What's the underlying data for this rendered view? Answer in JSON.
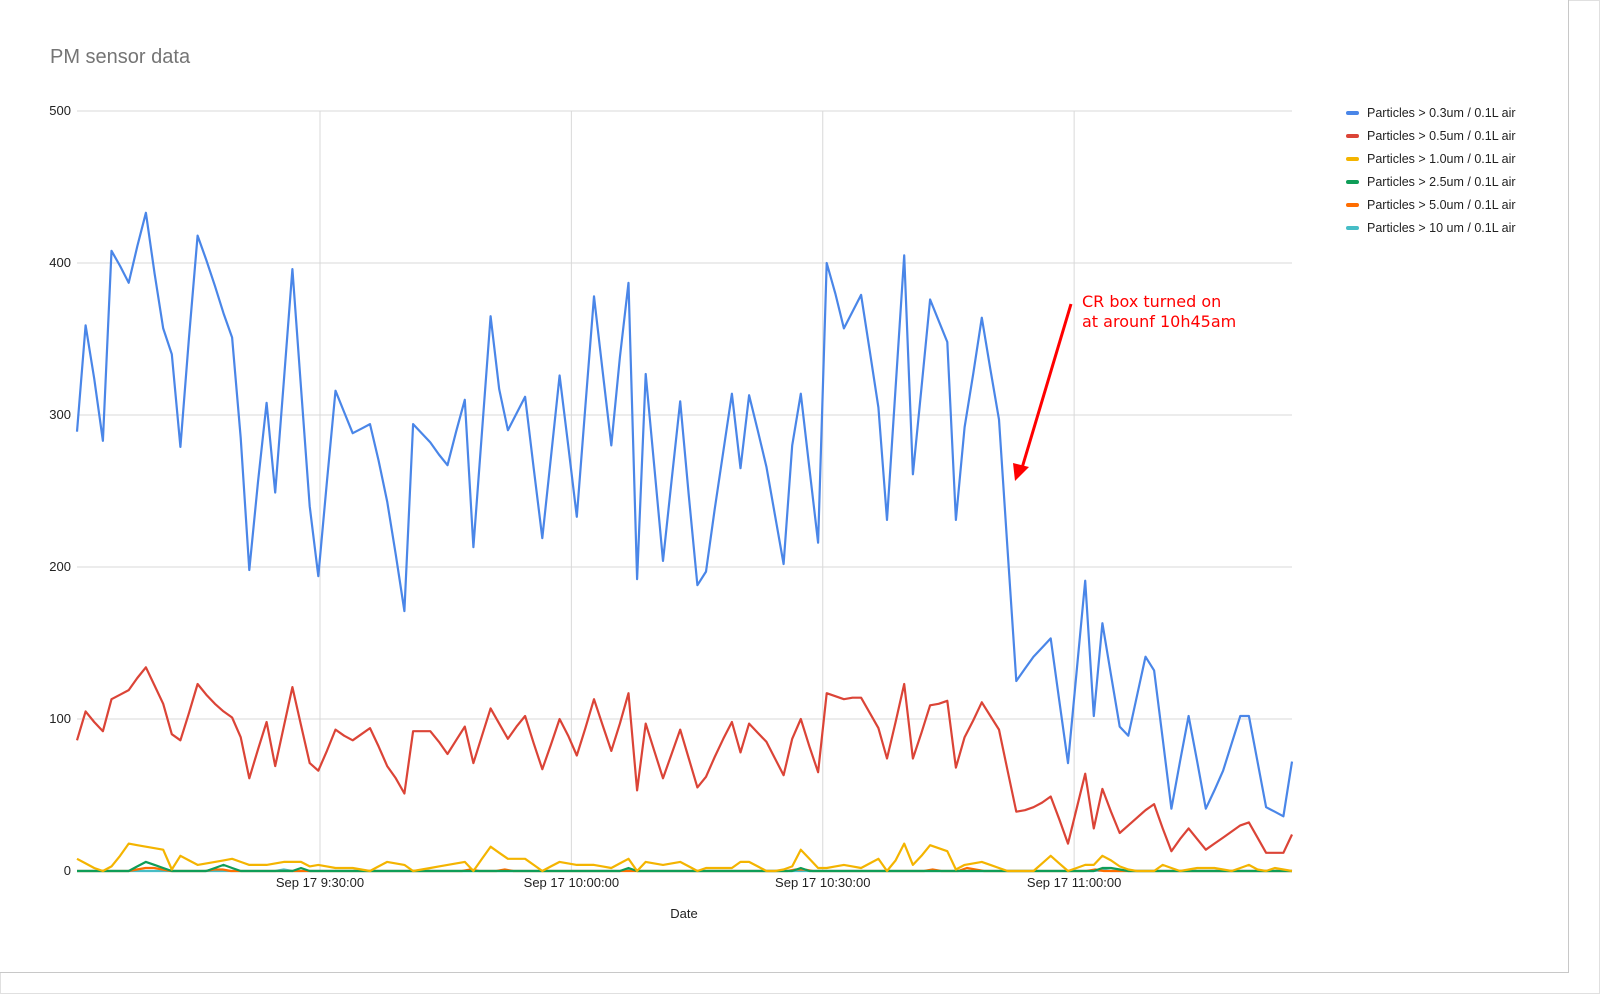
{
  "chart_data": {
    "type": "line",
    "title": "PM sensor data",
    "xlabel": "Date",
    "ylabel": "",
    "ylim": [
      0,
      500
    ],
    "yticks": [
      0,
      100,
      200,
      300,
      400,
      500
    ],
    "x_start": "Sep 17 9:01:00",
    "x_interval_seconds": 59,
    "x_end": "Sep 17 11:26:00",
    "xticks": [
      {
        "label": "Sep 17 9:30:00",
        "t": "09:30:00"
      },
      {
        "label": "Sep 17 10:00:00",
        "t": "10:00:00"
      },
      {
        "label": "Sep 17 10:30:00",
        "t": "10:30:00"
      },
      {
        "label": "Sep 17 11:00:00",
        "t": "11:00:00"
      }
    ],
    "grid": true,
    "legend_position": "right",
    "series": [
      {
        "name": "Particles > 0.3um / 0.1L air",
        "color": "#4a86e8",
        "values": [
          289,
          359,
          324,
          283,
          408,
          398,
          387,
          411,
          433,
          393,
          357,
          340,
          279,
          351,
          418,
          402,
          385,
          367,
          351,
          285,
          198,
          256,
          308,
          249,
          322,
          396,
          318,
          240,
          194,
          256,
          316,
          302,
          288,
          291,
          294,
          270,
          243,
          208,
          171,
          294,
          288,
          282,
          274,
          267,
          289,
          310,
          213,
          289,
          365,
          317,
          290,
          301,
          312,
          265,
          219,
          272,
          326,
          280,
          233,
          306,
          378,
          329,
          280,
          338,
          387,
          192,
          327,
          266,
          204,
          257,
          309,
          247,
          188,
          197,
          238,
          276,
          314,
          265,
          313,
          290,
          266,
          234,
          202,
          280,
          314,
          265,
          216,
          400,
          380,
          357,
          368,
          379,
          342,
          305,
          231,
          318,
          405,
          261,
          318,
          376,
          362,
          348,
          231,
          292,
          327,
          364,
          330,
          297,
          211,
          125,
          133,
          141,
          147,
          153,
          112,
          71,
          131,
          191,
          102,
          163,
          129,
          95,
          89,
          115,
          141,
          132,
          87,
          41,
          72,
          102,
          72,
          41,
          53,
          66,
          84,
          102,
          102,
          72,
          42,
          39,
          36,
          72
        ]
      },
      {
        "name": "Particles > 0.5um / 0.1L air",
        "color": "#db4437",
        "values": [
          86,
          105,
          98,
          92,
          113,
          116,
          119,
          127,
          134,
          122,
          110,
          90,
          86,
          104,
          123,
          116,
          110,
          105,
          101,
          88,
          61,
          80,
          98,
          69,
          95,
          121,
          96,
          71,
          66,
          79,
          93,
          89,
          86,
          90,
          94,
          82,
          69,
          61,
          51,
          92,
          92,
          92,
          85,
          77,
          86,
          95,
          71,
          89,
          107,
          97,
          87,
          95,
          102,
          84,
          67,
          83,
          100,
          89,
          76,
          94,
          113,
          96,
          79,
          97,
          117,
          53,
          97,
          79,
          61,
          77,
          93,
          74,
          55,
          62,
          75,
          87,
          98,
          78,
          97,
          91,
          85,
          74,
          63,
          87,
          100,
          82,
          65,
          117,
          115,
          113,
          114,
          114,
          104,
          94,
          74,
          98,
          123,
          74,
          91,
          109,
          110,
          112,
          68,
          88,
          99,
          111,
          102,
          93,
          66,
          39,
          40,
          42,
          45,
          49,
          34,
          18,
          41,
          64,
          28,
          54,
          39,
          25,
          30,
          35,
          40,
          44,
          28,
          13,
          21,
          28,
          21,
          14,
          18,
          22,
          26,
          30,
          32,
          22,
          12,
          12,
          12,
          24
        ]
      },
      {
        "name": "Particles > 1.0um / 0.1L air",
        "color": "#f4b400",
        "values": [
          8,
          5,
          2,
          0,
          3,
          10,
          18,
          17,
          16,
          15,
          14,
          1,
          10,
          7,
          4,
          5,
          6,
          7,
          8,
          6,
          4,
          4,
          4,
          5,
          6,
          6,
          6,
          3,
          4,
          3,
          2,
          2,
          2,
          1,
          0,
          3,
          6,
          5,
          4,
          0,
          1,
          2,
          3,
          4,
          5,
          6,
          0,
          8,
          16,
          12,
          8,
          8,
          8,
          4,
          0,
          3,
          6,
          5,
          4,
          4,
          4,
          3,
          2,
          5,
          8,
          0,
          6,
          5,
          4,
          5,
          6,
          3,
          0,
          2,
          2,
          2,
          2,
          6,
          6,
          3,
          0,
          0,
          1,
          3,
          14,
          8,
          2,
          2,
          3,
          4,
          3,
          2,
          5,
          8,
          0,
          7,
          18,
          4,
          10,
          17,
          15,
          13,
          1,
          4,
          5,
          6,
          4,
          2,
          0,
          0,
          0,
          0,
          5,
          10,
          5,
          0,
          2,
          4,
          4,
          10,
          7,
          3,
          1,
          0,
          0,
          0,
          4,
          2,
          0,
          1,
          2,
          2,
          2,
          1,
          0,
          2,
          4,
          1,
          0,
          2,
          1,
          0
        ]
      },
      {
        "name": "Particles > 2.5um / 0.1L air",
        "color": "#0f9d58",
        "values": [
          0,
          0,
          0,
          0,
          0,
          0,
          0,
          3,
          6,
          4,
          2,
          0,
          0,
          0,
          0,
          0,
          2,
          4,
          2,
          0,
          0,
          0,
          0,
          0,
          0,
          0,
          2,
          0,
          0,
          0,
          0,
          0,
          0,
          0,
          0,
          0,
          0,
          0,
          0,
          0,
          0,
          0,
          0,
          0,
          0,
          0,
          0,
          0,
          0,
          0,
          0,
          0,
          0,
          0,
          0,
          0,
          0,
          0,
          0,
          0,
          0,
          0,
          0,
          0,
          2,
          0,
          0,
          0,
          0,
          0,
          0,
          0,
          0,
          0,
          0,
          0,
          0,
          0,
          0,
          0,
          0,
          0,
          0,
          0,
          2,
          0,
          0,
          0,
          0,
          0,
          0,
          0,
          0,
          0,
          0,
          0,
          0,
          0,
          0,
          0,
          0,
          0,
          0,
          0,
          0,
          0,
          0,
          0,
          0,
          0,
          0,
          0,
          0,
          0,
          0,
          0,
          0,
          0,
          0,
          2,
          2,
          1,
          0,
          0,
          0,
          0,
          0,
          0,
          0,
          0,
          0,
          0,
          0,
          0,
          0,
          0,
          0,
          0,
          0,
          0,
          0,
          0
        ]
      },
      {
        "name": "Particles > 5.0um / 0.1L air",
        "color": "#ff6d00",
        "values": [
          0,
          0,
          0,
          0,
          0,
          0,
          0,
          1,
          2,
          2,
          1,
          0,
          0,
          0,
          0,
          0,
          1,
          1,
          0,
          0,
          0,
          0,
          0,
          0,
          0,
          0,
          0,
          0,
          0,
          0,
          0,
          0,
          0,
          0,
          0,
          0,
          0,
          0,
          0,
          0,
          0,
          0,
          0,
          0,
          0,
          0,
          1,
          0,
          0,
          0,
          1,
          0,
          0,
          0,
          0,
          0,
          0,
          0,
          0,
          0,
          0,
          0,
          0,
          0,
          0,
          0,
          0,
          0,
          0,
          0,
          0,
          0,
          0,
          0,
          0,
          0,
          0,
          0,
          0,
          0,
          0,
          0,
          0,
          0,
          1,
          1,
          0,
          0,
          0,
          0,
          0,
          0,
          0,
          0,
          0,
          0,
          0,
          0,
          0,
          0,
          1,
          0,
          0,
          0,
          2,
          1,
          0,
          0,
          0,
          0,
          0,
          0,
          0,
          0,
          0,
          0,
          0,
          0,
          0,
          1,
          0,
          0,
          0,
          0,
          0,
          0,
          0,
          0,
          0,
          0,
          0,
          0,
          0,
          0,
          0,
          0,
          0,
          0,
          0,
          0,
          0,
          0,
          0
        ]
      },
      {
        "name": "Particles > 10 um / 0.1L air",
        "color": "#46bdc6",
        "values": [
          0,
          0,
          0,
          0,
          0,
          0,
          0,
          0,
          0,
          0,
          0,
          0,
          0,
          0,
          0,
          0,
          0,
          0,
          0,
          0,
          0,
          0,
          0,
          0,
          1,
          0,
          0,
          0,
          0,
          0,
          0,
          0,
          0,
          0,
          0,
          0,
          0,
          0,
          0,
          0,
          0,
          0,
          0,
          0,
          0,
          0,
          0,
          0,
          0,
          0,
          0,
          0,
          0,
          0,
          0,
          0,
          0,
          0,
          0,
          0,
          0,
          0,
          0,
          0,
          1,
          0,
          0,
          0,
          0,
          0,
          0,
          0,
          0,
          0,
          0,
          0,
          0,
          0,
          0,
          0,
          0,
          0,
          0,
          0,
          0,
          0,
          0,
          0,
          0,
          0,
          0,
          0,
          0,
          0,
          0,
          0,
          0,
          0,
          0,
          0,
          0,
          0,
          0,
          0,
          0,
          0,
          0,
          0,
          0,
          0,
          0,
          0,
          0,
          0,
          0,
          0,
          0,
          0,
          0,
          1,
          0,
          0,
          0,
          0,
          0,
          0,
          0,
          0,
          0,
          0,
          0,
          0,
          0,
          0,
          0,
          0,
          0,
          0,
          0,
          0,
          0,
          0
        ]
      }
    ],
    "annotation": {
      "lines": [
        "CR box turned on",
        "at arounf 10h45am"
      ],
      "color": "#ff0000"
    }
  }
}
